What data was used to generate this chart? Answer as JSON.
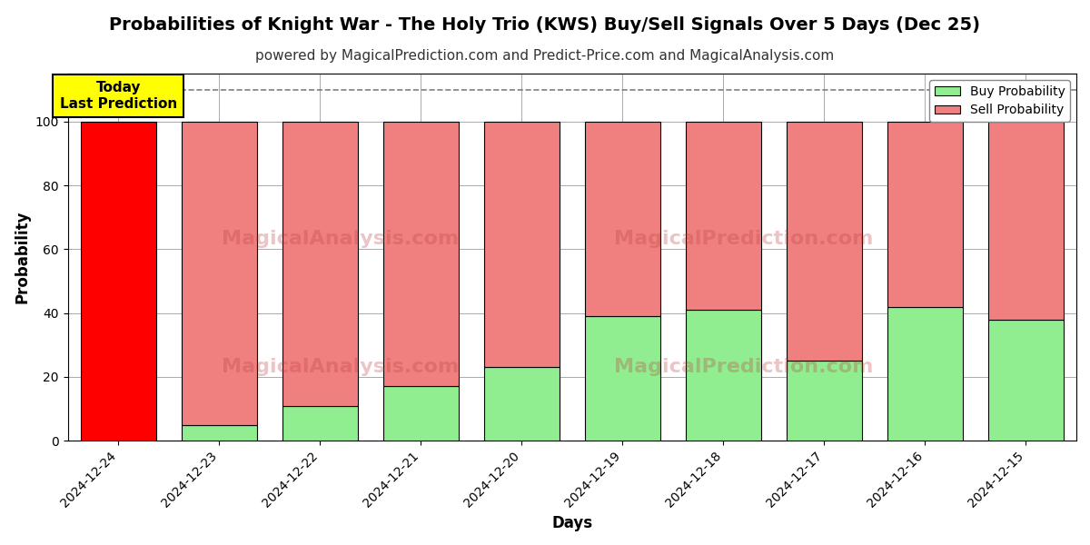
{
  "title": "Probabilities of Knight War - The Holy Trio (KWS) Buy/Sell Signals Over 5 Days (Dec 25)",
  "subtitle": "powered by MagicalPrediction.com and Predict-Price.com and MagicalAnalysis.com",
  "xlabel": "Days",
  "ylabel": "Probability",
  "categories": [
    "2024-12-24",
    "2024-12-23",
    "2024-12-22",
    "2024-12-21",
    "2024-12-20",
    "2024-12-19",
    "2024-12-18",
    "2024-12-17",
    "2024-12-16",
    "2024-12-15"
  ],
  "buy_values": [
    0,
    5,
    11,
    17,
    23,
    39,
    41,
    25,
    42,
    38
  ],
  "sell_values": [
    100,
    95,
    89,
    83,
    77,
    61,
    59,
    75,
    58,
    62
  ],
  "buy_color_first": "#ff0000",
  "buy_color_rest": "#90ee90",
  "sell_color_first": "#ff0000",
  "sell_color_rest": "#f08080",
  "bar_edge_color": "#000000",
  "ylim": [
    0,
    115
  ],
  "yticks": [
    0,
    20,
    40,
    60,
    80,
    100
  ],
  "dashed_line_y": 110,
  "today_label": "Today\nLast Prediction",
  "today_box_color": "#ffff00",
  "today_box_edge": "#000000",
  "legend_buy_label": "Buy Probability",
  "legend_sell_label": "Sell Probability",
  "legend_buy_color": "#90ee90",
  "legend_sell_color": "#f08080",
  "background_color": "#ffffff",
  "grid_color": "#aaaaaa",
  "title_fontsize": 14,
  "subtitle_fontsize": 11,
  "axis_label_fontsize": 12,
  "tick_fontsize": 10
}
